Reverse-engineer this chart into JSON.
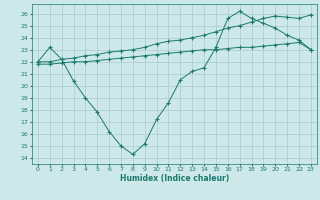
{
  "xlabel": "Humidex (Indice chaleur)",
  "xlim": [
    -0.5,
    23.5
  ],
  "ylim": [
    13.5,
    26.8
  ],
  "yticks": [
    14,
    15,
    16,
    17,
    18,
    19,
    20,
    21,
    22,
    23,
    24,
    25,
    26
  ],
  "xticks": [
    0,
    1,
    2,
    3,
    4,
    5,
    6,
    7,
    8,
    9,
    10,
    11,
    12,
    13,
    14,
    15,
    16,
    17,
    18,
    19,
    20,
    21,
    22,
    23
  ],
  "line_color": "#1a7a6e",
  "bg_color": "#cce8e8",
  "grid_color": "#aacccc",
  "line1_x": [
    0,
    1,
    2,
    3,
    4,
    5,
    6,
    7,
    8,
    9,
    10,
    11,
    12,
    13,
    14,
    15,
    16,
    17,
    18,
    19,
    20,
    21,
    22,
    23
  ],
  "line1_y": [
    22.0,
    23.2,
    22.2,
    20.4,
    19.0,
    17.8,
    16.2,
    15.0,
    14.3,
    15.2,
    17.2,
    18.6,
    20.5,
    21.2,
    21.5,
    23.2,
    25.6,
    26.2,
    25.6,
    25.2,
    24.8,
    24.2,
    23.8,
    23.0
  ],
  "line2_x": [
    0,
    1,
    2,
    3,
    4,
    5,
    6,
    7,
    8,
    9,
    10,
    11,
    12,
    13,
    14,
    15,
    16,
    17,
    18,
    19,
    20,
    21,
    22,
    23
  ],
  "line2_y": [
    22.0,
    22.0,
    22.2,
    22.3,
    22.5,
    22.6,
    22.8,
    22.9,
    23.0,
    23.2,
    23.5,
    23.7,
    23.8,
    24.0,
    24.2,
    24.5,
    24.8,
    25.0,
    25.3,
    25.6,
    25.8,
    25.7,
    25.6,
    25.9
  ],
  "line3_x": [
    0,
    1,
    2,
    3,
    4,
    5,
    6,
    7,
    8,
    9,
    10,
    11,
    12,
    13,
    14,
    15,
    16,
    17,
    18,
    19,
    20,
    21,
    22,
    23
  ],
  "line3_y": [
    21.8,
    21.8,
    21.9,
    22.0,
    22.0,
    22.1,
    22.2,
    22.3,
    22.4,
    22.5,
    22.6,
    22.7,
    22.8,
    22.9,
    23.0,
    23.0,
    23.1,
    23.2,
    23.2,
    23.3,
    23.4,
    23.5,
    23.6,
    23.0
  ]
}
